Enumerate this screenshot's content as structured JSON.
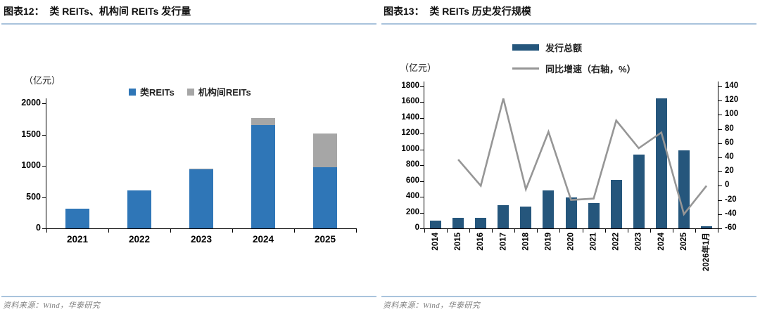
{
  "left_panel": {
    "title": "图表12：  类 REITs、机构间 REITs 发行量",
    "unit_label": "（亿元）",
    "source": "资料来源：Wind，华泰研究"
  },
  "right_panel": {
    "title": "图表13：  类 REITs 历史发行规模",
    "unit_label": "（亿元）",
    "source": "资料来源：Wind，华泰研究"
  },
  "colors": {
    "class_reits_blue": "#2F76B7",
    "inter_institution_gray": "#A6A6A6",
    "issuance_navy": "#25567C",
    "growth_line_gray": "#969696",
    "rule_blue": "#A9C3DC",
    "source_text_gray": "#7F7F7F"
  },
  "chart_data": [
    {
      "type": "bar",
      "stacked": true,
      "title": "类 REITs、机构间 REITs 发行量",
      "ylabel": "（亿元）",
      "categories": [
        "2021",
        "2022",
        "2023",
        "2024",
        "2025"
      ],
      "series": [
        {
          "name": "类REITs",
          "color": "#2F76B7",
          "values": [
            310,
            610,
            940,
            1650,
            980
          ]
        },
        {
          "name": "机构间REITs",
          "color": "#A6A6A6",
          "values": [
            0,
            0,
            20,
            110,
            540
          ]
        }
      ],
      "ylim": [
        0,
        2000
      ],
      "yticks": [
        0,
        500,
        1000,
        1500,
        2000
      ],
      "legend_position": "top",
      "grid": false
    },
    {
      "type": "bar+line",
      "title": "类 REITs 历史发行规模",
      "ylabel_left": "（亿元）",
      "categories": [
        "2014",
        "2015",
        "2016",
        "2017",
        "2018",
        "2019",
        "2020",
        "2021",
        "2022",
        "2023",
        "2024",
        "2025",
        "2026年1月"
      ],
      "bar_series": {
        "name": "发行总额",
        "axis": "left",
        "color": "#25567C",
        "values": [
          95,
          130,
          130,
          290,
          275,
          485,
          390,
          320,
          615,
          940,
          1650,
          990,
          25
        ]
      },
      "line_series": {
        "name": "同比增速（右轴，%）",
        "axis": "right",
        "color": "#969696",
        "values": [
          null,
          37,
          0,
          123,
          -5,
          76,
          -20,
          -18,
          92,
          53,
          75,
          -40,
          0
        ]
      },
      "ylim_left": [
        0,
        1800
      ],
      "yticks_left": [
        0,
        200,
        400,
        600,
        800,
        1000,
        1200,
        1400,
        1600,
        1800
      ],
      "ylim_right": [
        -60,
        140
      ],
      "yticks_right": [
        -60,
        -40,
        -20,
        0,
        20,
        40,
        60,
        80,
        100,
        120,
        140
      ],
      "legend_position": "top",
      "grid": false
    }
  ]
}
